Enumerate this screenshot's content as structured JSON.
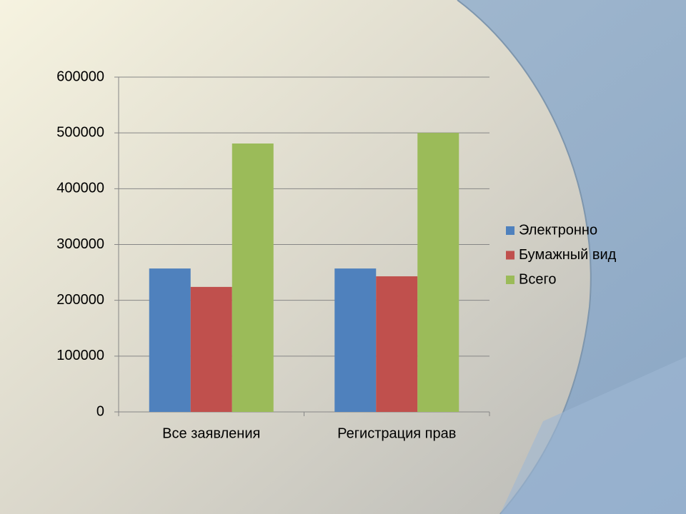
{
  "chart_data": {
    "type": "bar",
    "categories": [
      "Все заявления",
      "Регистрация прав"
    ],
    "series": [
      {
        "name": "Электронно",
        "color": "#4f81bd",
        "values": [
          257000,
          257000
        ]
      },
      {
        "name": "Бумажный вид",
        "color": "#c0504d",
        "values": [
          224000,
          243000
        ]
      },
      {
        "name": "Всего",
        "color": "#9bbb59",
        "values": [
          481000,
          500000
        ]
      }
    ],
    "ylim": [
      0,
      600000
    ],
    "yticks": [
      0,
      100000,
      200000,
      300000,
      400000,
      500000,
      600000
    ],
    "grid": true,
    "legend": "right"
  }
}
